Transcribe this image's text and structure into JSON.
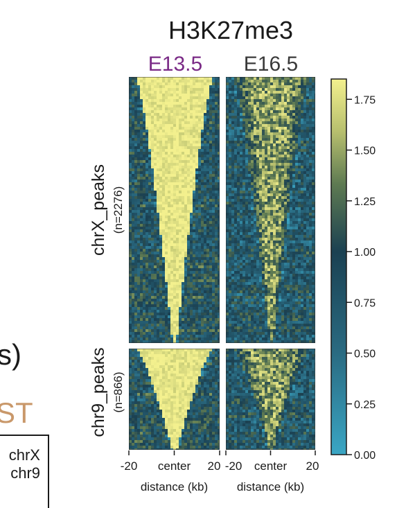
{
  "left_fragments": {
    "paren_text": "s)",
    "orange_text": "ST",
    "legend_box": [
      "chrX",
      "chr9"
    ]
  },
  "chart_data": {
    "type": "heatmap",
    "title": "H3K27me3",
    "columns": [
      {
        "label": "E13.5",
        "color": "#7a2a86"
      },
      {
        "label": "E16.5",
        "color": "#3a3a3a"
      }
    ],
    "rows": [
      {
        "label": "chrX_peaks",
        "sublabel": "(n=2276)",
        "count": 2276
      },
      {
        "label": "chr9_peaks",
        "sublabel": "(n=866)",
        "count": 866
      }
    ],
    "x_axis": {
      "ticks": [
        "-20",
        "center",
        "20"
      ],
      "range_kb": [
        -20,
        20
      ],
      "label": "distance (kb)"
    },
    "colorbar": {
      "ticks": [
        0.0,
        0.25,
        0.5,
        0.75,
        1.0,
        1.25,
        1.5,
        1.75
      ],
      "tick_labels": [
        "0.00",
        "0.25",
        "0.50",
        "0.75",
        "1.00",
        "1.25",
        "1.50",
        "1.75"
      ],
      "range": [
        0,
        1.85
      ],
      "colors": {
        "low": "#3aa6c4",
        "mid": "#1b4152",
        "high": "#f3f08e"
      }
    },
    "pattern": {
      "E13.5": {
        "center_value": 1.8,
        "background_value": 0.9,
        "halfwidth_top_kb": 17,
        "halfwidth_bottom_kb": 0.8
      },
      "E16.5": {
        "center_value": 1.45,
        "background_value": 0.8,
        "halfwidth_top_kb": 17,
        "halfwidth_bottom_kb": 1.0
      }
    }
  }
}
